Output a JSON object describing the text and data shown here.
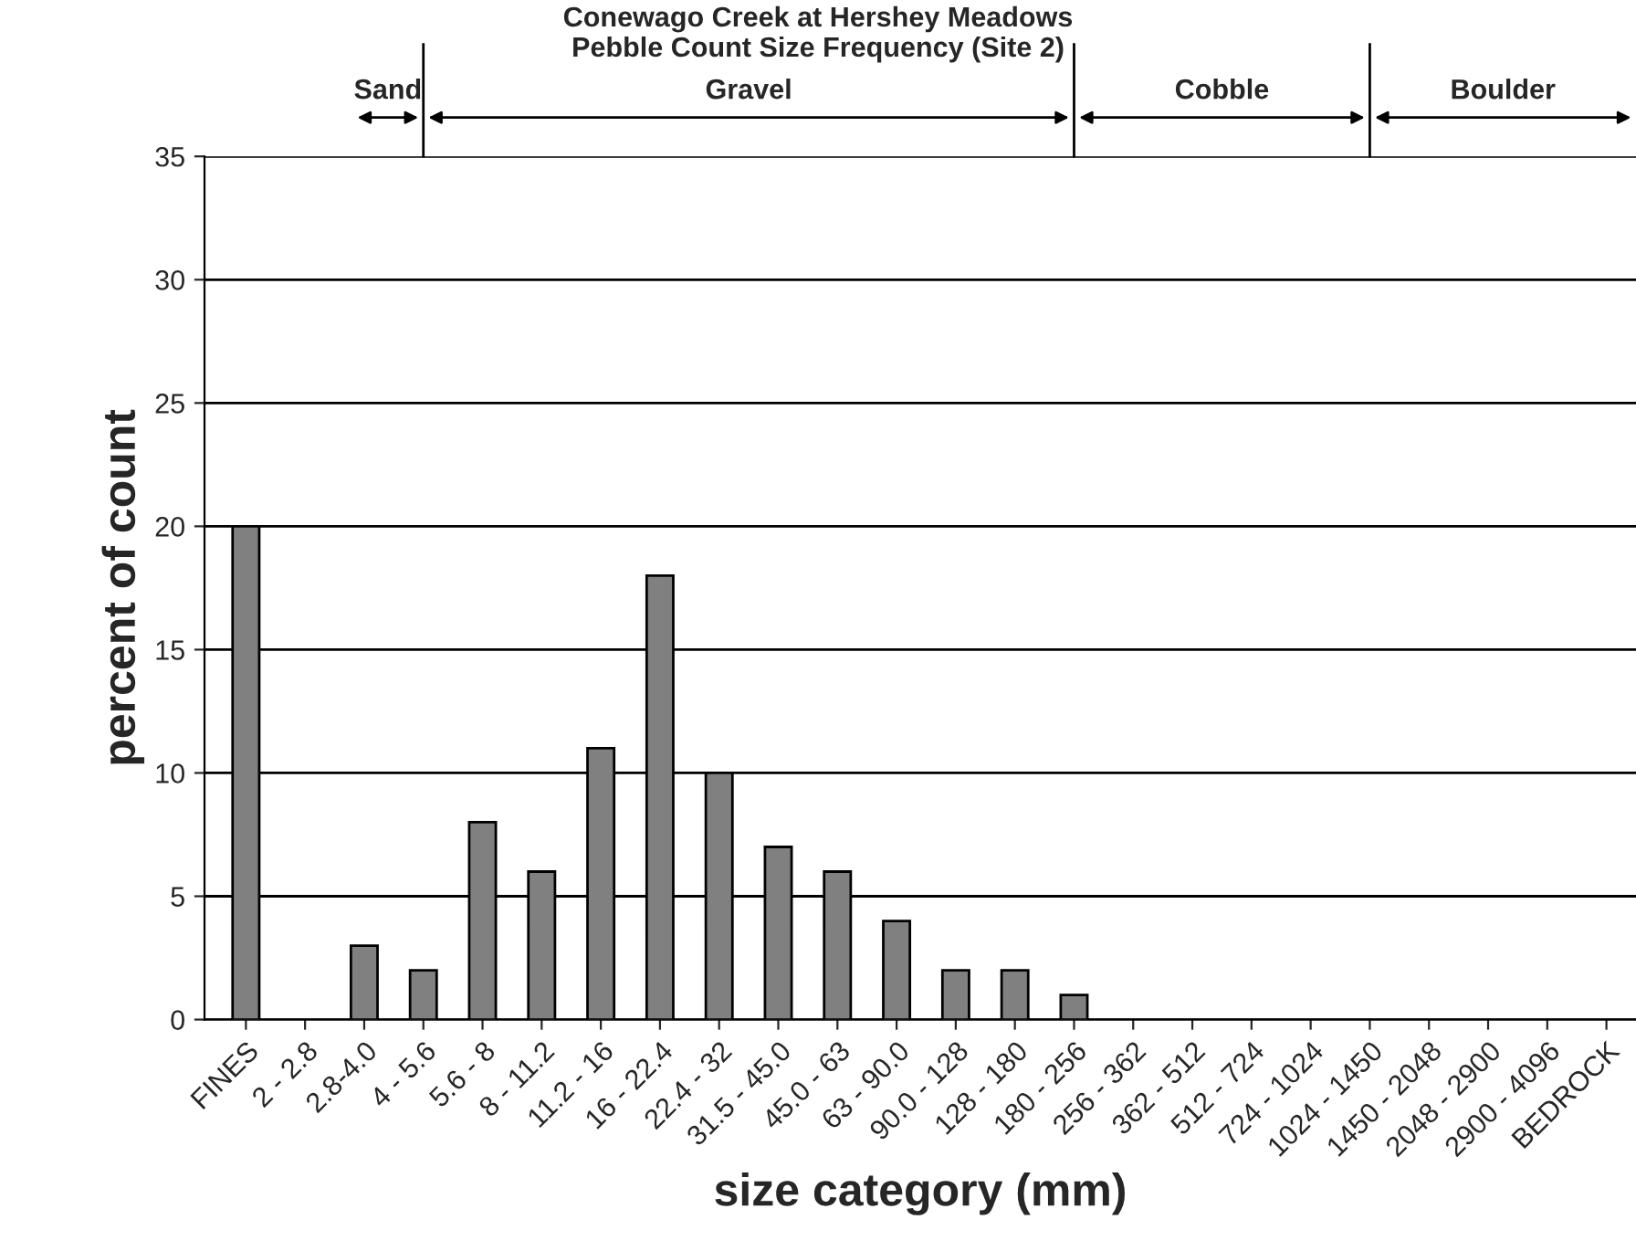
{
  "chart_data": {
    "type": "bar",
    "title": "Conewago Creek at Hershey Meadows\nPebble Count Size Frequency (Site 2)",
    "xlabel": "size category (mm)",
    "ylabel": "percent of count",
    "categories": [
      "FINES",
      "2 - 2.8",
      "2.8-4.0",
      "4 - 5.6",
      "5.6 - 8",
      "8 - 11.2",
      "11.2 - 16",
      "16 - 22.4",
      "22.4 - 32",
      "31.5 - 45.0",
      "45.0 - 63",
      "63 - 90.0",
      "90.0 - 128",
      "128 - 180",
      "180 - 256",
      "256 - 362",
      "362 - 512",
      "512 - 724",
      "724 - 1024",
      "1024 - 1450",
      "1450 - 2048",
      "2048 - 2900",
      "2900 - 4096",
      "BEDROCK"
    ],
    "values": [
      20,
      0,
      3,
      2,
      8,
      6,
      11,
      18,
      10,
      7,
      6,
      4,
      2,
      2,
      1,
      0,
      0,
      0,
      0,
      0,
      0,
      0,
      0,
      0
    ],
    "color": "#808080",
    "ylim": [
      0,
      35
    ],
    "yticks": [
      0,
      5,
      10,
      15,
      20,
      25,
      30,
      35
    ],
    "grid": "y",
    "annotations": [
      "Sand",
      "Gravel",
      "Cobble",
      "Boulder"
    ]
  }
}
